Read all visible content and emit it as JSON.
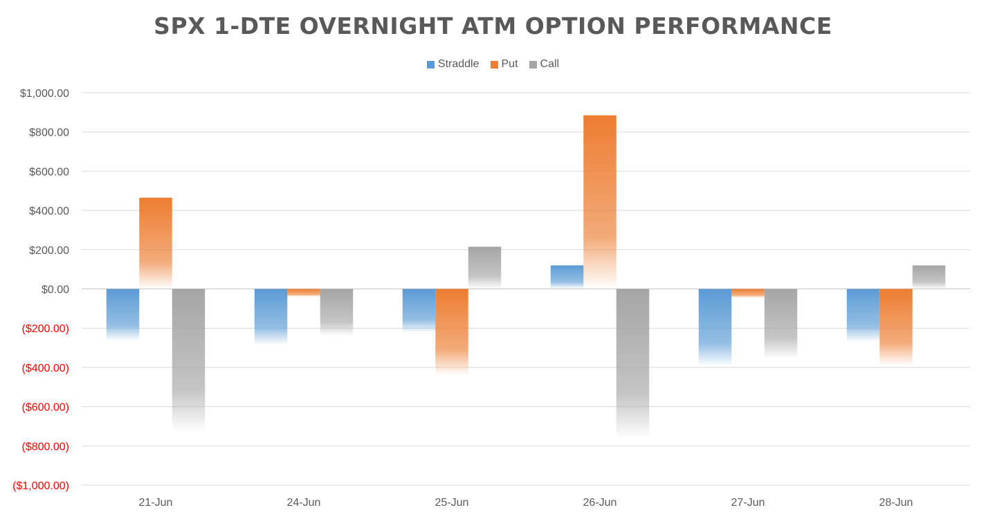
{
  "chart_data": {
    "type": "bar",
    "title": "SPX 1-DTE OVERNIGHT ATM OPTION PERFORMANCE",
    "xlabel": "",
    "ylabel": "",
    "categories": [
      "21-Jun",
      "24-Jun",
      "25-Jun",
      "26-Jun",
      "27-Jun",
      "28-Jun"
    ],
    "series": [
      {
        "name": "Straddle",
        "color": "#5b9bd5",
        "values": [
          -265,
          -285,
          -225,
          120,
          -395,
          -270
        ]
      },
      {
        "name": "Put",
        "color": "#ed7d31",
        "values": [
          465,
          -40,
          -440,
          885,
          -45,
          -390
        ]
      },
      {
        "name": "Call",
        "color": "#a5a5a5",
        "values": [
          -730,
          -240,
          215,
          -765,
          -355,
          120
        ]
      }
    ],
    "ylim": [
      -1000,
      1000
    ],
    "yticks": [
      1000,
      800,
      600,
      400,
      200,
      0,
      -200,
      -400,
      -600,
      -800,
      -1000
    ],
    "ytick_labels": [
      "$1,000.00",
      "$800.00",
      "$600.00",
      "$400.00",
      "$200.00",
      "$0.00",
      "($200.00)",
      "($400.00)",
      "($600.00)",
      "($800.00)",
      "($1,000.00)"
    ],
    "negative_label_color": "#ff0000",
    "positive_label_color": "#595959",
    "grid": true,
    "legend_position": "top-center"
  }
}
